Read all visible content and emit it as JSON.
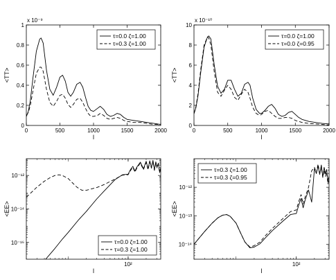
{
  "figure": {
    "line_color": "#000000",
    "background": "#ffffff"
  },
  "chart_data": [
    {
      "type": "line",
      "panel": "top-left",
      "xlabel": "l",
      "ylabel": "<TT>",
      "exponent_label": "x 10⁻⁹",
      "xscale": "linear",
      "yscale": "linear",
      "xlim": [
        0,
        2000
      ],
      "ylim": [
        0,
        1
      ],
      "xticks": [
        0,
        500,
        1000,
        1500,
        2000
      ],
      "xtick_labels": [
        "0",
        "500",
        "1000",
        "1500",
        "2000"
      ],
      "yticks": [
        0,
        0.2,
        0.4,
        0.6,
        0.8,
        1
      ],
      "ytick_labels": [
        "0",
        "0.2",
        "0.4",
        "0.6",
        "0.8",
        "1"
      ],
      "grid": false,
      "legend_position": "top-right",
      "series": [
        {
          "name": "τ=0.0 ζ=1.00",
          "style": "solid",
          "x": [
            2,
            30,
            60,
            100,
            150,
            200,
            220,
            250,
            300,
            350,
            400,
            450,
            500,
            540,
            580,
            620,
            660,
            700,
            750,
            800,
            840,
            880,
            920,
            960,
            1000,
            1060,
            1100,
            1150,
            1200,
            1250,
            1300,
            1350,
            1400,
            1450,
            1500,
            1600,
            1700,
            1800,
            1900,
            2000
          ],
          "y": [
            0.09,
            0.14,
            0.25,
            0.48,
            0.74,
            0.86,
            0.87,
            0.82,
            0.55,
            0.36,
            0.3,
            0.38,
            0.48,
            0.5,
            0.44,
            0.33,
            0.29,
            0.33,
            0.41,
            0.43,
            0.38,
            0.28,
            0.19,
            0.15,
            0.14,
            0.17,
            0.19,
            0.16,
            0.11,
            0.09,
            0.1,
            0.12,
            0.11,
            0.08,
            0.06,
            0.05,
            0.04,
            0.03,
            0.02,
            0.01
          ]
        },
        {
          "name": "τ=0.3 ζ=1.00",
          "style": "dashed",
          "x": [
            2,
            30,
            60,
            100,
            150,
            200,
            220,
            250,
            300,
            350,
            400,
            450,
            500,
            540,
            580,
            620,
            660,
            700,
            750,
            800,
            840,
            880,
            920,
            960,
            1000,
            1060,
            1100,
            1150,
            1200,
            1250,
            1300,
            1350,
            1400,
            1450,
            1500,
            1600,
            1700,
            1800,
            1900,
            2000
          ],
          "y": [
            0.1,
            0.13,
            0.2,
            0.35,
            0.52,
            0.58,
            0.58,
            0.54,
            0.36,
            0.23,
            0.19,
            0.24,
            0.3,
            0.31,
            0.27,
            0.21,
            0.18,
            0.21,
            0.26,
            0.27,
            0.23,
            0.17,
            0.12,
            0.09,
            0.09,
            0.1,
            0.12,
            0.1,
            0.07,
            0.06,
            0.07,
            0.08,
            0.07,
            0.05,
            0.04,
            0.03,
            0.03,
            0.02,
            0.01,
            0.01
          ]
        }
      ]
    },
    {
      "type": "line",
      "panel": "top-right",
      "xlabel": "l",
      "ylabel": "<TT>",
      "exponent_label": "x 10⁻¹⁰",
      "xscale": "linear",
      "yscale": "linear",
      "xlim": [
        0,
        2000
      ],
      "ylim": [
        0,
        10
      ],
      "xticks": [
        0,
        500,
        1000,
        1500,
        2000
      ],
      "xtick_labels": [
        "0",
        "500",
        "1000",
        "1500",
        "2000"
      ],
      "yticks": [
        0,
        2,
        4,
        6,
        8,
        10
      ],
      "ytick_labels": [
        "0",
        "2",
        "4",
        "6",
        "8",
        "10"
      ],
      "grid": false,
      "legend_position": "top-right",
      "series": [
        {
          "name": "τ=0.0 ζ=1.00",
          "style": "solid",
          "x": [
            2,
            30,
            60,
            100,
            150,
            200,
            220,
            250,
            300,
            350,
            400,
            450,
            500,
            550,
            600,
            650,
            700,
            750,
            800,
            830,
            870,
            920,
            970,
            1000,
            1050,
            1100,
            1150,
            1200,
            1250,
            1300,
            1350,
            1400,
            1450,
            1500,
            1550,
            1600,
            1700,
            1800,
            1900,
            2000
          ],
          "y": [
            1.2,
            1.8,
            3.0,
            5.3,
            7.8,
            8.8,
            8.9,
            8.6,
            6.0,
            3.9,
            3.2,
            3.6,
            4.5,
            4.5,
            3.6,
            2.9,
            3.2,
            4.1,
            4.3,
            4.0,
            2.7,
            1.6,
            1.2,
            1.2,
            1.5,
            1.9,
            2.1,
            1.7,
            1.1,
            0.9,
            1.0,
            1.3,
            1.4,
            1.1,
            0.8,
            0.6,
            0.4,
            0.3,
            0.2,
            0.15
          ]
        },
        {
          "name": "τ=0.0 ζ=0.95",
          "style": "dashed",
          "x": [
            2,
            30,
            60,
            100,
            150,
            200,
            220,
            250,
            300,
            350,
            400,
            450,
            500,
            550,
            600,
            650,
            700,
            750,
            800,
            830,
            870,
            920,
            970,
            1000,
            1050,
            1100,
            1150,
            1200,
            1250,
            1300,
            1350,
            1400,
            1450,
            1500,
            1550,
            1600,
            1700,
            1800,
            1900,
            2000
          ],
          "y": [
            1.2,
            1.9,
            3.2,
            5.6,
            8.0,
            8.8,
            8.7,
            8.0,
            5.3,
            3.3,
            2.9,
            3.5,
            4.0,
            3.6,
            2.8,
            2.5,
            3.1,
            3.6,
            3.3,
            2.7,
            1.8,
            1.2,
            1.0,
            1.1,
            1.4,
            1.5,
            1.2,
            0.9,
            0.7,
            0.7,
            0.8,
            0.8,
            0.7,
            0.5,
            0.4,
            0.3,
            0.2,
            0.15,
            0.1,
            0.05
          ]
        }
      ]
    },
    {
      "type": "line",
      "panel": "bottom-left",
      "xlabel": "l",
      "ylabel": "<EE>",
      "xscale": "log",
      "yscale": "log",
      "xlim": [
        2,
        350
      ],
      "ylim": [
        1e-17,
        1e-11
      ],
      "xticks": [
        100
      ],
      "xtick_labels": [
        "10²"
      ],
      "yticks": [
        1e-16,
        1e-14,
        1e-12
      ],
      "ytick_labels": [
        "10⁻¹⁶",
        "10⁻¹⁴",
        "10⁻¹²"
      ],
      "grid": false,
      "legend_position": "bottom-right",
      "series": [
        {
          "name": "τ=0.0 ζ=1.00",
          "style": "solid",
          "x": [
            4,
            6,
            8,
            10,
            15,
            20,
            30,
            40,
            60,
            80,
            100,
            110,
            120,
            130,
            140,
            160,
            180,
            200,
            215,
            230,
            245,
            260,
            275,
            290,
            305,
            320,
            335,
            350
          ],
          "y": [
            8e-18,
            4.4e-17,
            1.6e-16,
            4e-16,
            2.3e-15,
            7e-15,
            4e-14,
            1.2e-13,
            5.5e-13,
            1.1e-12,
            1.2e-12,
            2.3e-12,
            3.5e-12,
            1.8e-12,
            3.2e-12,
            6.2e-12,
            2.5e-12,
            7e-12,
            2.5e-12,
            7.5e-12,
            3e-12,
            8e-12,
            2.2e-12,
            6.5e-12,
            3.2e-12,
            5.5e-12,
            1.6e-12,
            3e-12
          ]
        },
        {
          "name": "τ=0.3 ζ=1.00",
          "style": "dashed",
          "x": [
            2,
            3,
            4,
            5,
            6,
            7,
            8,
            10,
            12,
            14,
            17,
            20,
            30,
            40,
            60,
            80,
            100,
            110,
            120,
            130,
            140,
            160,
            180,
            200,
            215,
            230,
            245,
            260,
            275,
            290,
            305,
            320,
            335,
            350
          ],
          "y": [
            5e-14,
            2e-13,
            4.5e-13,
            7.5e-13,
            1e-12,
            1.1e-12,
            1e-12,
            6.5e-13,
            3.4e-13,
            2e-13,
            1.3e-13,
            1.3e-13,
            1.9e-13,
            2.9e-13,
            6e-13,
            1.05e-12,
            1.1e-12,
            2e-12,
            3e-12,
            1.6e-12,
            2.8e-12,
            5.5e-12,
            2.2e-12,
            6e-12,
            2.2e-12,
            6.5e-12,
            2.7e-12,
            7e-12,
            2e-12,
            5.5e-12,
            2.8e-12,
            4.8e-12,
            1.4e-12,
            2.6e-12
          ]
        }
      ]
    },
    {
      "type": "line",
      "panel": "bottom-right",
      "xlabel": "l",
      "ylabel": "<EE>",
      "xscale": "log",
      "yscale": "log",
      "xlim": [
        2,
        350
      ],
      "ylim": [
        3e-15,
        1e-11
      ],
      "xticks": [
        100
      ],
      "xtick_labels": [
        "10²"
      ],
      "yticks": [
        1e-14,
        1e-13,
        1e-12
      ],
      "ytick_labels": [
        "10⁻¹⁴",
        "10⁻¹³",
        "10⁻¹²"
      ],
      "grid": false,
      "legend_position": "top-left",
      "series": [
        {
          "name": "τ=0.3 ζ=1.00",
          "style": "solid",
          "x": [
            2,
            3,
            4,
            5,
            6,
            7,
            8,
            10,
            12,
            14,
            17,
            20,
            25,
            30,
            40,
            60,
            80,
            100,
            110,
            120,
            130,
            140,
            160,
            180,
            200,
            215,
            230,
            245,
            260,
            275,
            290,
            305,
            320,
            335,
            350
          ],
          "y": [
            1e-14,
            2.8e-14,
            5.5e-14,
            8.5e-14,
            1.05e-13,
            1.1e-13,
            9.5e-14,
            5.5e-14,
            2.4e-14,
            1.2e-14,
            7.5e-15,
            8e-15,
            1.05e-14,
            1.6e-14,
            3e-14,
            6.5e-14,
            1.1e-13,
            1.2e-13,
            2.4e-13,
            4e-13,
            1.9e-13,
            3.5e-13,
            8e-13,
            3e-13,
            4.5e-12,
            3e-12,
            5.5e-12,
            2.8e-12,
            6e-12,
            2.3e-12,
            5e-12,
            3e-12,
            4.2e-12,
            1.6e-12,
            2.5e-12
          ]
        },
        {
          "name": "τ=0.3 ζ=0.95",
          "style": "dashed",
          "x": [
            2,
            3,
            4,
            5,
            6,
            7,
            8,
            10,
            12,
            14,
            17,
            20,
            25,
            30,
            40,
            60,
            80,
            100,
            110,
            120,
            130,
            140,
            160,
            180,
            200,
            215,
            230,
            245,
            260,
            275,
            290,
            305,
            320,
            335,
            350
          ],
          "y": [
            1e-14,
            2.8e-14,
            5.5e-14,
            8.5e-14,
            1.05e-13,
            1.1e-13,
            9.5e-14,
            5.5e-14,
            2.4e-14,
            1.2e-14,
            8e-15,
            9e-15,
            1.2e-14,
            1.9e-14,
            3.6e-14,
            8e-14,
            1.4e-13,
            1.6e-13,
            3.2e-13,
            5.5e-13,
            2.6e-13,
            4.5e-13,
            1e-12,
            3.8e-12,
            5e-12,
            3.2e-12,
            6.5e-12,
            3e-12,
            5e-12,
            2.2e-12,
            4e-12,
            2.4e-12,
            3.4e-12,
            1.3e-12,
            2e-12
          ]
        }
      ]
    }
  ]
}
